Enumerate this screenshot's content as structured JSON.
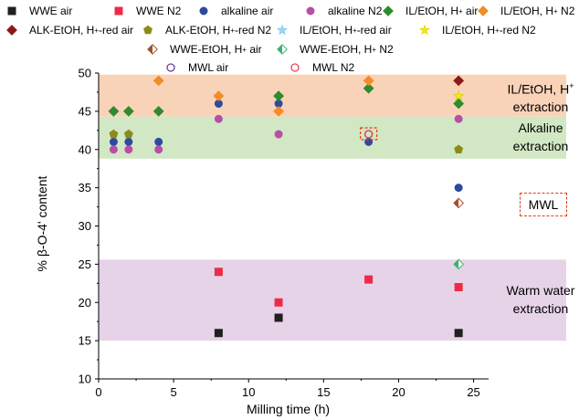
{
  "legend": [
    {
      "id": "wwe_air",
      "pre": "WWE air",
      "sup": "",
      "post": "",
      "symbol": "square",
      "fill": "#231f20",
      "stroke": "#231f20"
    },
    {
      "id": "wwe_n2",
      "pre": "WWE N2",
      "sup": "",
      "post": "",
      "symbol": "square",
      "fill": "#ee2b47",
      "stroke": "#ee2b47"
    },
    {
      "id": "alk_air",
      "pre": "alkaline air",
      "sup": "",
      "post": "",
      "symbol": "circle",
      "fill": "#2e4a9e",
      "stroke": "#2e4a9e"
    },
    {
      "id": "alk_n2",
      "pre": "alkaline N2",
      "sup": "",
      "post": "",
      "symbol": "circle",
      "fill": "#b84ea6",
      "stroke": "#b84ea6"
    },
    {
      "id": "il_air",
      "pre": "IL/EtOH, H",
      "sup": "+",
      "post": " air",
      "symbol": "diamond",
      "fill": "#2e8b2e",
      "stroke": "#2e8b2e"
    },
    {
      "id": "il_n2",
      "pre": "IL/EtOH, H",
      "sup": "+",
      "post": " N2",
      "symbol": "diamond",
      "fill": "#f28c28",
      "stroke": "#f28c28"
    },
    {
      "id": "alketoh_air",
      "pre": "ALK-EtOH, H",
      "sup": "+",
      "post": "-red air",
      "symbol": "diamond",
      "fill": "#8b1a1a",
      "stroke": "#8b1a1a"
    },
    {
      "id": "alketoh_n2",
      "pre": "ALK-EtOH, H",
      "sup": "+",
      "post": "-red N2",
      "symbol": "pentagon",
      "fill": "#8b8b1a",
      "stroke": "#8b8b1a"
    },
    {
      "id": "ilred_air",
      "pre": "IL/EtOH, H",
      "sup": "+",
      "post": "-red air",
      "symbol": "star",
      "fill": "#9fd8f0",
      "stroke": "#6cc3e8"
    },
    {
      "id": "ilred_n2",
      "pre": "IL/EtOH, H",
      "sup": "+",
      "post": "-red N2",
      "symbol": "star",
      "fill": "#f5e614",
      "stroke": "#e0d000"
    },
    {
      "id": "wweetoh_air",
      "pre": "WWE-EtOH, H",
      "sup": "+",
      "post": " air",
      "symbol": "halfdiamond",
      "fill": "#a0522d",
      "stroke": "#a0522d"
    },
    {
      "id": "wweetoh_n2",
      "pre": "WWE-EtOH, H",
      "sup": "+",
      "post": " N2",
      "symbol": "halfdiamond",
      "fill": "#3cb371",
      "stroke": "#3cb371"
    },
    {
      "id": "mwl_air",
      "pre": "MWL air",
      "sup": "",
      "post": "",
      "symbol": "opencircle",
      "fill": "none",
      "stroke": "#6a3fa0"
    },
    {
      "id": "mwl_n2",
      "pre": "MWL N2",
      "sup": "",
      "post": "",
      "symbol": "opencircle",
      "fill": "none",
      "stroke": "#e8455a"
    }
  ],
  "bands": [
    {
      "id": "il",
      "y0": 44.3,
      "y1": 49.8,
      "color": "#f9d3b8",
      "lines": [
        {
          "pre": "IL/EtOH, H",
          "sup": "+",
          "post": ""
        },
        {
          "pre": "extraction",
          "sup": "",
          "post": ""
        }
      ]
    },
    {
      "id": "alk",
      "y0": 38.8,
      "y1": 44.3,
      "color": "#d2e7c4",
      "lines": [
        {
          "pre": "Alkaline",
          "sup": "",
          "post": ""
        },
        {
          "pre": "extraction",
          "sup": "",
          "post": ""
        }
      ]
    },
    {
      "id": "ww",
      "y0": 15.0,
      "y1": 25.6,
      "color": "#e6d3e8",
      "lines": [
        {
          "pre": "Warm water",
          "sup": "",
          "post": ""
        },
        {
          "pre": "extraction",
          "sup": "",
          "post": ""
        }
      ]
    }
  ],
  "mwl_label": "MWL",
  "chart_data": {
    "type": "scatter",
    "xlabel": "Milling time (h)",
    "ylabel": "% β-O-4' content",
    "xlim": [
      0,
      26
    ],
    "ylim": [
      10,
      50
    ],
    "xticks": [
      0,
      5,
      10,
      15,
      20,
      25
    ],
    "yticks": [
      10,
      15,
      20,
      25,
      30,
      35,
      40,
      45,
      50
    ],
    "series": [
      {
        "name": "WWE air",
        "id": "wwe_air",
        "x": [
          8,
          12,
          24
        ],
        "y": [
          16,
          18,
          16
        ]
      },
      {
        "name": "WWE N2",
        "id": "wwe_n2",
        "x": [
          8,
          12,
          18,
          24
        ],
        "y": [
          24,
          20,
          23,
          22
        ]
      },
      {
        "name": "alkaline air",
        "id": "alk_air",
        "x": [
          1,
          2,
          4,
          8,
          12,
          18,
          24
        ],
        "y": [
          41,
          41,
          41,
          46,
          46,
          41,
          35
        ]
      },
      {
        "name": "alkaline N2",
        "id": "alk_n2",
        "x": [
          1,
          2,
          4,
          8,
          12,
          24
        ],
        "y": [
          40,
          40,
          40,
          44,
          42,
          44
        ]
      },
      {
        "name": "IL/EtOH, H+ air",
        "id": "il_air",
        "x": [
          1,
          2,
          4,
          12,
          18,
          24
        ],
        "y": [
          45,
          45,
          45,
          47,
          48,
          46
        ]
      },
      {
        "name": "IL/EtOH, H+ N2",
        "id": "il_n2",
        "x": [
          4,
          8,
          12,
          18
        ],
        "y": [
          49,
          47,
          45,
          49
        ]
      },
      {
        "name": "ALK-EtOH, H+-red air",
        "id": "alketoh_air",
        "x": [
          24
        ],
        "y": [
          49
        ]
      },
      {
        "name": "ALK-EtOH, H+-red N2",
        "id": "alketoh_n2",
        "x": [
          1,
          2,
          24
        ],
        "y": [
          42,
          42,
          40
        ]
      },
      {
        "name": "IL/EtOH, H+-red air",
        "id": "ilred_air",
        "x": [
          24
        ],
        "y": [
          47
        ]
      },
      {
        "name": "IL/EtOH, H+-red N2",
        "id": "ilred_n2",
        "x": [
          24
        ],
        "y": [
          47
        ]
      },
      {
        "name": "WWE-EtOH, H+ air",
        "id": "wweetoh_air",
        "x": [
          24
        ],
        "y": [
          33
        ]
      },
      {
        "name": "WWE-EtOH, H+ N2",
        "id": "wweetoh_n2",
        "x": [
          24
        ],
        "y": [
          25
        ]
      },
      {
        "name": "MWL air",
        "id": "mwl_air",
        "x": [
          18
        ],
        "y": [
          42
        ]
      },
      {
        "name": "MWL N2",
        "id": "mwl_n2",
        "x": [
          18
        ],
        "y": [
          42
        ]
      }
    ],
    "mwl_highlight": {
      "x": 18,
      "y": 42
    }
  }
}
